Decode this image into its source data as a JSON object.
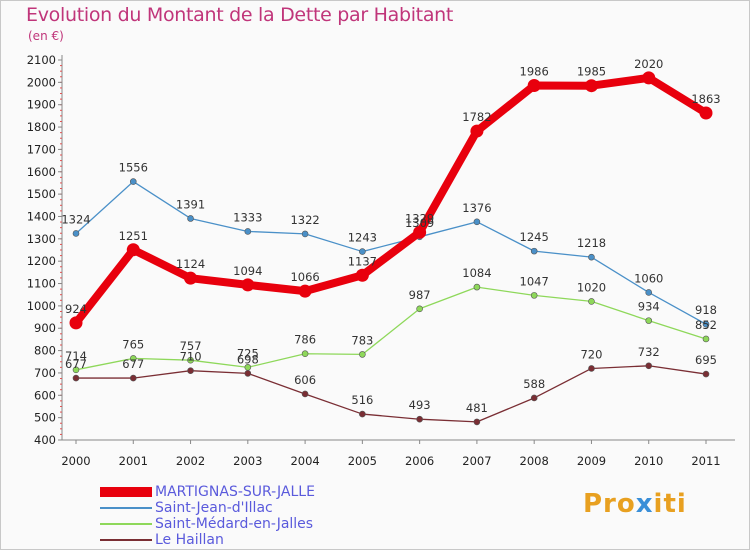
{
  "title": "Evolution du Montant de la Dette par Habitant",
  "subtitle": "(en €)",
  "logo": {
    "part1": "Pro",
    "part2": "x",
    "part3": "iti"
  },
  "chart_data": {
    "type": "line",
    "title": "Evolution du Montant de la Dette par Habitant",
    "subtitle": "(en €)",
    "x": [
      2000,
      2001,
      2002,
      2003,
      2004,
      2005,
      2006,
      2007,
      2008,
      2009,
      2010,
      2011
    ],
    "ylim": [
      400,
      2100
    ],
    "yticks": [
      400,
      500,
      600,
      700,
      800,
      900,
      1000,
      1100,
      1200,
      1300,
      1400,
      1500,
      1600,
      1700,
      1800,
      1900,
      2000,
      2100
    ],
    "grid": false,
    "legend_position": "bottom-left",
    "series": [
      {
        "name": "MARTIGNAS-SUR-JALLE",
        "color": "#e8000d",
        "values": [
          924,
          1251,
          1124,
          1094,
          1066,
          1137,
          1329,
          1782,
          1986,
          1985,
          2020,
          1863
        ]
      },
      {
        "name": "Saint-Jean-d'Illac",
        "color": "#4a90c8",
        "values": [
          1324,
          1556,
          1391,
          1333,
          1322,
          1243,
          1309,
          1376,
          1245,
          1218,
          1060,
          918
        ]
      },
      {
        "name": "Saint-Médard-en-Jalles",
        "color": "#8ed85a",
        "values": [
          714,
          765,
          757,
          725,
          786,
          783,
          987,
          1084,
          1047,
          1020,
          934,
          852
        ]
      },
      {
        "name": "Le Haillan",
        "color": "#7a2e34",
        "values": [
          677,
          677,
          710,
          698,
          606,
          516,
          493,
          481,
          588,
          720,
          732,
          695
        ]
      }
    ]
  }
}
